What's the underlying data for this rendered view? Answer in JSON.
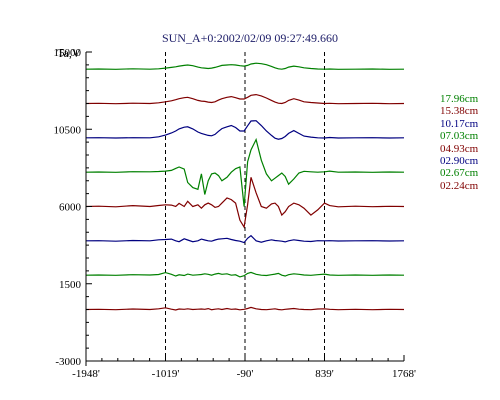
{
  "chart_data": {
    "type": "line",
    "title": "SUN_A+0:2002/02/09 09:27:49.660",
    "y_unit_label": "Ta,V",
    "xlim": [
      -1948,
      1768
    ],
    "ylim": [
      -3000,
      15000
    ],
    "x_ticks": [
      -1948,
      -1019,
      -90,
      839,
      1768
    ],
    "x_tick_labels": [
      "-1948'",
      "-1019'",
      "-90'",
      "839'",
      "1768'"
    ],
    "y_ticks": [
      15000,
      10500,
      6000,
      1500,
      -3000
    ],
    "y_tick_labels": [
      "15000",
      "10500",
      "6000",
      "1500",
      "-3000"
    ],
    "vlines": [
      -1019,
      -90,
      839
    ],
    "x": [
      -1948,
      -1800,
      -1600,
      -1400,
      -1200,
      -1100,
      -1019,
      -950,
      -900,
      -860,
      -800,
      -760,
      -700,
      -640,
      -600,
      -560,
      -520,
      -480,
      -440,
      -400,
      -360,
      -300,
      -250,
      -200,
      -150,
      -100,
      -60,
      -20,
      40,
      100,
      160,
      220,
      260,
      300,
      340,
      380,
      420,
      480,
      540,
      600,
      680,
      760,
      839,
      900,
      1000,
      1200,
      1400,
      1600,
      1768
    ],
    "series": [
      {
        "name": "17.96cm",
        "color": "#008000",
        "values": [
          14000,
          14010,
          13990,
          14020,
          14000,
          14020,
          14060,
          14100,
          14140,
          14180,
          14220,
          14240,
          14200,
          14120,
          14080,
          14060,
          14040,
          14060,
          14100,
          14160,
          14220,
          14240,
          14260,
          14240,
          14200,
          14180,
          14220,
          14300,
          14350,
          14320,
          14260,
          14160,
          14080,
          14020,
          14000,
          14040,
          14120,
          14180,
          14140,
          14080,
          14040,
          14010,
          14000,
          14010,
          13990,
          14000,
          14010,
          13990,
          14000
        ]
      },
      {
        "name": "15.38cm",
        "color": "#800000",
        "values": [
          12000,
          12010,
          11990,
          12020,
          12000,
          12040,
          12100,
          12160,
          12220,
          12280,
          12340,
          12360,
          12280,
          12180,
          12140,
          12120,
          12080,
          12060,
          12100,
          12200,
          12280,
          12360,
          12400,
          12340,
          12260,
          12260,
          12360,
          12480,
          12520,
          12440,
          12320,
          12180,
          12080,
          12020,
          12000,
          12060,
          12180,
          12280,
          12200,
          12100,
          12060,
          12030,
          12000,
          12010,
          11990,
          12000,
          12010,
          11990,
          12000
        ]
      },
      {
        "name": "10.17cm",
        "color": "#000080",
        "values": [
          10000,
          10010,
          9990,
          10010,
          10000,
          10060,
          10160,
          10280,
          10400,
          10520,
          10620,
          10640,
          10520,
          10340,
          10260,
          10200,
          10140,
          10120,
          10200,
          10380,
          10540,
          10640,
          10720,
          10600,
          10400,
          10400,
          10700,
          10980,
          11000,
          10720,
          10400,
          10140,
          9980,
          9920,
          9960,
          10080,
          10260,
          10420,
          10260,
          10100,
          10040,
          10000,
          9990,
          10020,
          9990,
          10000,
          10010,
          9990,
          10000
        ]
      },
      {
        "name": "07.03cm",
        "color": "#008000",
        "values": [
          8000,
          8010,
          7990,
          8030,
          8020,
          8040,
          8060,
          8100,
          8220,
          8300,
          8180,
          7400,
          7100,
          7000,
          7900,
          6700,
          7500,
          7900,
          7950,
          7800,
          7500,
          7700,
          8000,
          8200,
          8300,
          6000,
          8600,
          9300,
          9900,
          8700,
          7900,
          7500,
          7650,
          7800,
          7950,
          7750,
          7300,
          7600,
          7950,
          8050,
          8020,
          8000,
          8020,
          8060,
          8000,
          8010,
          7990,
          8010,
          8000
        ]
      },
      {
        "name": "04.93cm",
        "color": "#800000",
        "values": [
          6000,
          6020,
          5980,
          6050,
          6000,
          6060,
          6100,
          6080,
          6000,
          6180,
          6000,
          6300,
          6000,
          6100,
          5900,
          6100,
          6200,
          6100,
          5950,
          6000,
          6200,
          6500,
          6400,
          6200,
          5200,
          4800,
          6100,
          7700,
          6800,
          6000,
          5900,
          6150,
          6200,
          6000,
          5500,
          5700,
          6000,
          6200,
          6100,
          5900,
          5500,
          5800,
          6200,
          6050,
          5980,
          6020,
          5990,
          6010,
          6000
        ]
      },
      {
        "name": "02.90cm",
        "color": "#000080",
        "values": [
          4000,
          4010,
          3980,
          4020,
          4000,
          4060,
          4080,
          4100,
          4000,
          3950,
          4120,
          4050,
          3950,
          4000,
          4100,
          4050,
          4000,
          3980,
          4050,
          4100,
          4120,
          4150,
          4080,
          4020,
          3980,
          3900,
          4150,
          4300,
          4000,
          3920,
          4000,
          4060,
          4020,
          4000,
          3980,
          3940,
          4000,
          4060,
          4020,
          3980,
          3960,
          4010,
          4000,
          4010,
          3990,
          4000,
          4010,
          3990,
          4000
        ]
      },
      {
        "name": "02.67cm",
        "color": "#008000",
        "values": [
          2000,
          2010,
          1990,
          2030,
          2010,
          2040,
          2150,
          2050,
          1950,
          2020,
          1980,
          2060,
          2000,
          2020,
          2040,
          2080,
          2050,
          2000,
          2060,
          2100,
          2050,
          2080,
          2000,
          2020,
          1900,
          1970,
          2100,
          2160,
          2050,
          2000,
          1980,
          2030,
          2060,
          2100,
          2000,
          1950,
          2030,
          2080,
          2050,
          2010,
          1990,
          2030,
          2060,
          2010,
          1990,
          2010,
          1990,
          2010,
          2000
        ]
      },
      {
        "name": "02.24cm",
        "color": "#800000",
        "values": [
          0,
          10,
          -10,
          30,
          0,
          40,
          100,
          20,
          -30,
          30,
          10,
          40,
          0,
          20,
          30,
          10,
          50,
          -10,
          20,
          40,
          0,
          60,
          10,
          30,
          -20,
          10,
          60,
          120,
          40,
          0,
          -10,
          20,
          40,
          0,
          -20,
          10,
          30,
          60,
          20,
          0,
          -10,
          30,
          40,
          10,
          -10,
          10,
          -10,
          10,
          0
        ]
      }
    ]
  }
}
